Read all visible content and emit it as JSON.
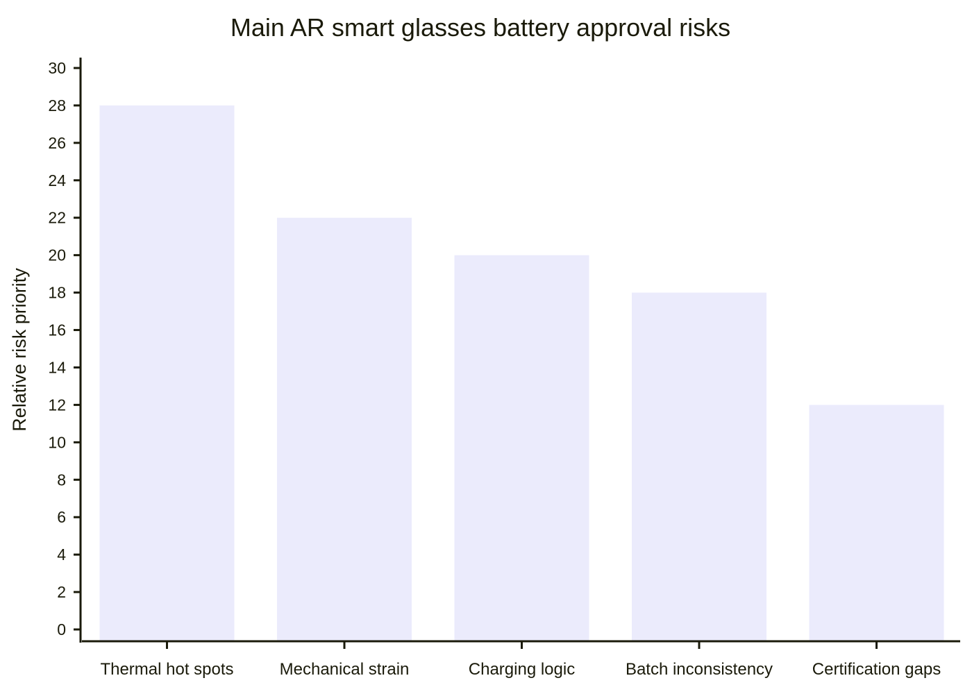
{
  "chart_data": {
    "type": "bar",
    "title": "Main AR smart glasses battery approval risks",
    "xlabel": "",
    "ylabel": "Relative risk priority",
    "categories": [
      "Thermal hot spots",
      "Mechanical strain",
      "Charging logic",
      "Batch inconsistency",
      "Certification gaps"
    ],
    "values": [
      28,
      22,
      20,
      18,
      12
    ],
    "ylim": [
      0,
      30
    ],
    "yticks": [
      0,
      2,
      4,
      6,
      8,
      10,
      12,
      14,
      16,
      18,
      20,
      22,
      24,
      26,
      28,
      30
    ],
    "grid": false,
    "legend": "none",
    "colors": {
      "bar": "#ebebfc",
      "axis": "#1a1a0a",
      "text": "#1a1a0a"
    }
  }
}
